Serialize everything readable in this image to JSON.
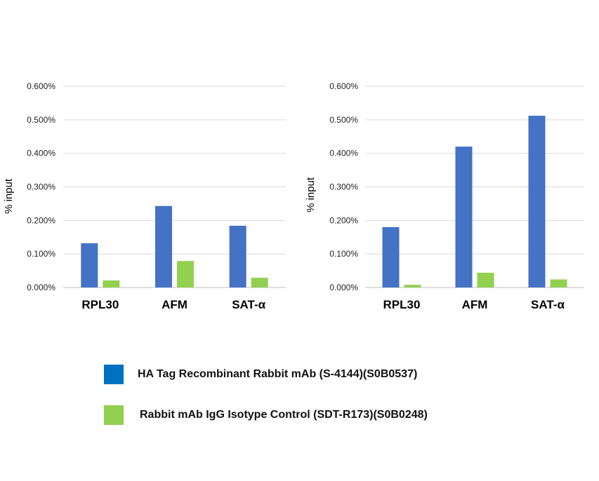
{
  "chart_data": [
    {
      "type": "bar",
      "categories": [
        "RPL30",
        "AFM",
        "SAT-α"
      ],
      "ylabel": "% input",
      "ylim": [
        0,
        0.6
      ],
      "yticks": [
        "0.000%",
        "0.100%",
        "0.200%",
        "0.300%",
        "0.400%",
        "0.500%",
        "0.600%"
      ],
      "grid": true,
      "series": [
        {
          "name": "HA Tag Recombinant Rabbit mAb (S-4144)(S0B0537)",
          "color": "#4472C4",
          "values": [
            0.132,
            0.243,
            0.184
          ]
        },
        {
          "name": "Rabbit mAb IgG Isotype Control (SDT-R173)(S0B0248)",
          "color": "#92D050",
          "values": [
            0.021,
            0.079,
            0.029
          ]
        }
      ]
    },
    {
      "type": "bar",
      "categories": [
        "RPL30",
        "AFM",
        "SAT-α"
      ],
      "ylabel": "% input",
      "ylim": [
        0,
        0.6
      ],
      "yticks": [
        "0.000%",
        "0.100%",
        "0.200%",
        "0.300%",
        "0.400%",
        "0.500%",
        "0.600%"
      ],
      "grid": true,
      "series": [
        {
          "name": "HA Tag Recombinant Rabbit mAb (S-4144)(S0B0537)",
          "color": "#4472C4",
          "values": [
            0.18,
            0.42,
            0.512
          ]
        },
        {
          "name": "Rabbit mAb IgG Isotype Control (SDT-R173)(S0B0248)",
          "color": "#92D050",
          "values": [
            0.008,
            0.044,
            0.024
          ]
        }
      ]
    }
  ],
  "legend": {
    "placement": "bottom",
    "items": [
      {
        "label": "HA Tag Recombinant Rabbit mAb (S-4144)(S0B0537)",
        "color": "#0070C0"
      },
      {
        "label": "Rabbit mAb IgG Isotype Control (SDT-R173)(S0B0248)",
        "color": "#92D050"
      }
    ]
  }
}
